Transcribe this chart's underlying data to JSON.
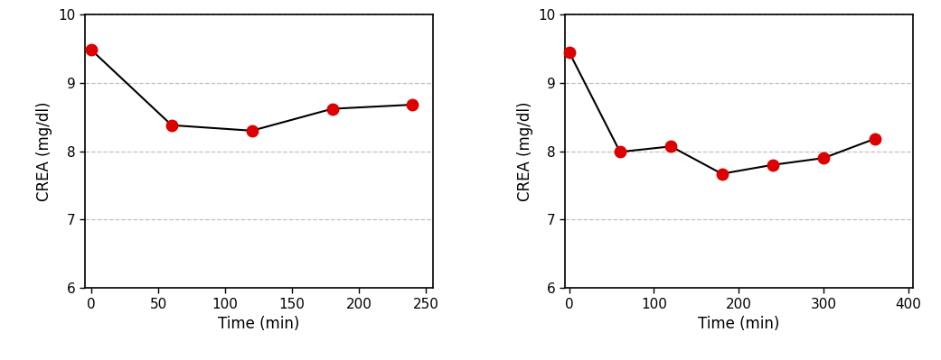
{
  "left": {
    "x": [
      0,
      60,
      120,
      180,
      240
    ],
    "y": [
      9.48,
      8.38,
      8.3,
      8.62,
      8.68
    ],
    "xlabel": "Time (min)",
    "ylabel": "CREA (mg/dl)",
    "xlim": [
      -5,
      255
    ],
    "xticks": [
      0,
      50,
      100,
      150,
      200,
      250
    ],
    "ylim": [
      6,
      10
    ],
    "yticks": [
      6,
      7,
      8,
      9,
      10
    ]
  },
  "right": {
    "x": [
      0,
      60,
      120,
      180,
      240,
      300,
      360
    ],
    "y": [
      9.45,
      7.99,
      8.07,
      7.67,
      7.8,
      7.9,
      8.18
    ],
    "xlabel": "Time (min)",
    "ylabel": "CREA (mg/dl)",
    "xlim": [
      -5,
      405
    ],
    "xticks": [
      0,
      100,
      200,
      300,
      400
    ],
    "ylim": [
      6,
      10
    ],
    "yticks": [
      6,
      7,
      8,
      9,
      10
    ]
  },
  "line_color": "#000000",
  "marker_color": "#dd0000",
  "marker_size": 9,
  "line_width": 1.5,
  "grid_color": "#c0c0c0",
  "grid_style": "--",
  "grid_alpha": 1.0,
  "label_color": "#000000",
  "label_fontsize": 12,
  "tick_fontsize": 11,
  "background_color": "#ffffff"
}
